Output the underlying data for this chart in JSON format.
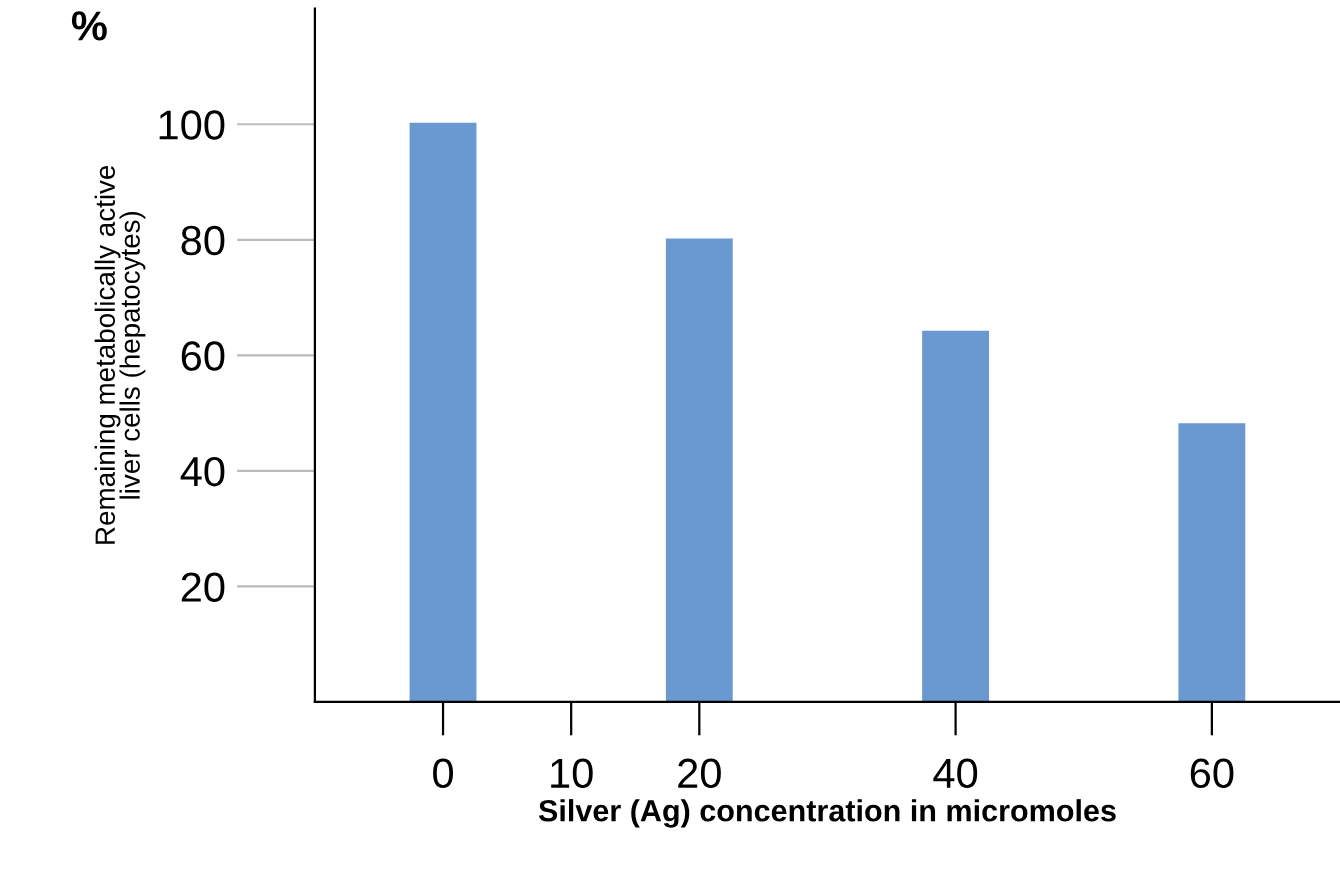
{
  "chart_data": {
    "type": "bar",
    "xlabel": "Silver (Ag) concentration in micromoles",
    "ylabel": "Remaining metabolically active\nliver cells (hepatocytes)",
    "annotations": [
      "%"
    ],
    "x": [
      0,
      20,
      40,
      60
    ],
    "values": [
      100,
      80,
      64,
      48
    ],
    "color": "#6a98d0",
    "xlim": [
      -10,
      70
    ],
    "xticks": [
      0,
      10,
      20,
      40,
      60
    ],
    "ylim": [
      0,
      120
    ],
    "yticks": [
      {
        "value": 20,
        "label": "20"
      },
      {
        "value": 40,
        "label": "40"
      },
      {
        "value": 60,
        "label": "60"
      },
      {
        "value": 80,
        "label": "80"
      },
      {
        "value": 100,
        "label": "100"
      }
    ],
    "grid": false,
    "legend": false
  }
}
